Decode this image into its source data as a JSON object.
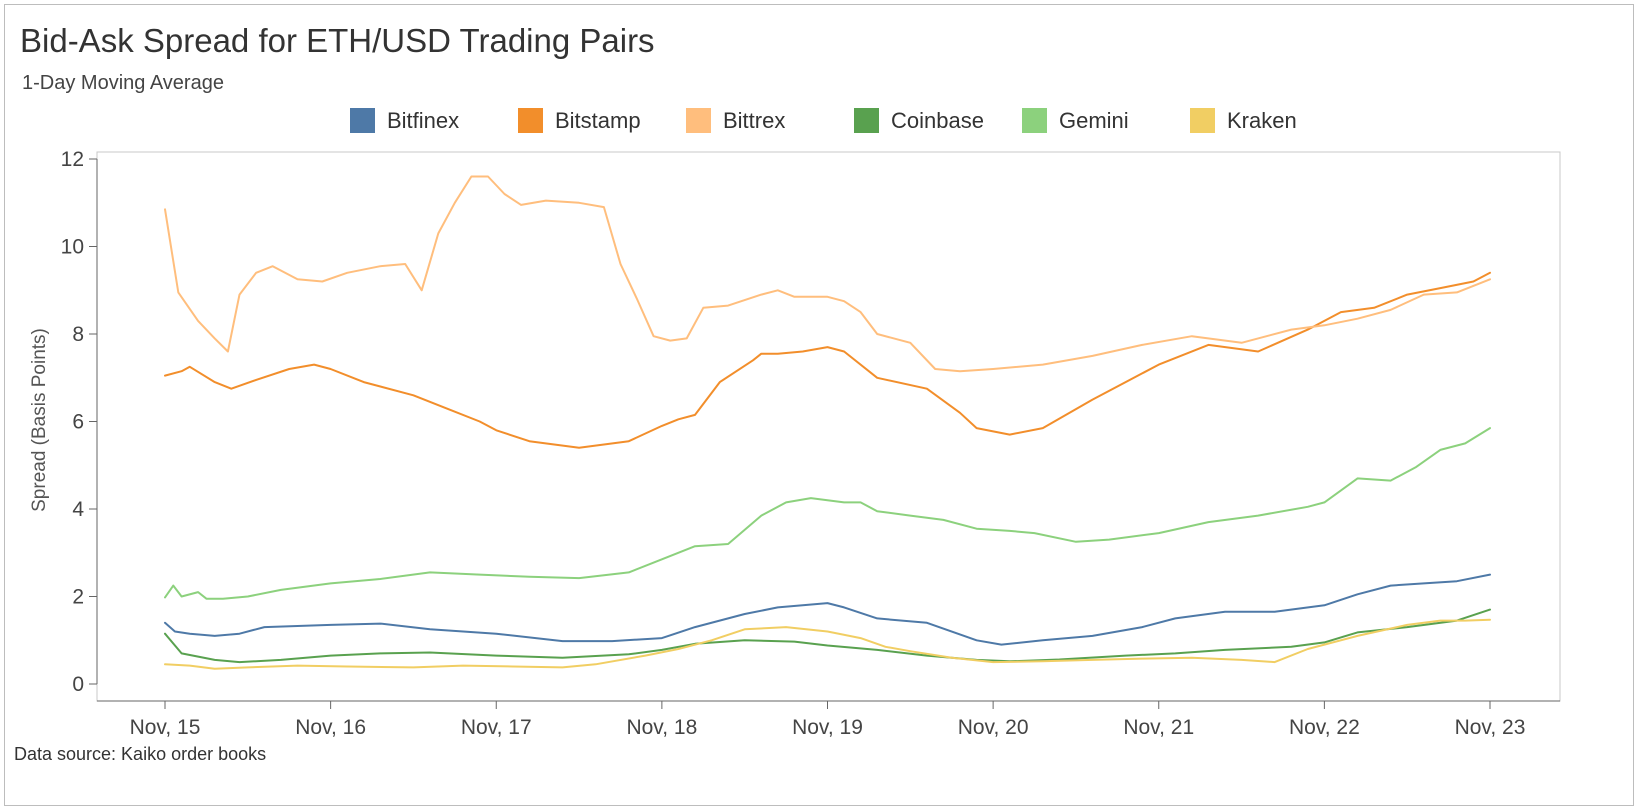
{
  "chart_data": {
    "type": "line",
    "title": "Bid-Ask Spread for ETH/USD Trading Pairs",
    "subtitle": "1-Day Moving Average",
    "ylabel": "Spread (Basis Points)",
    "xlabel": "",
    "x_ticks": [
      "Nov, 15",
      "Nov, 16",
      "Nov, 17",
      "Nov, 18",
      "Nov, 19",
      "Nov, 20",
      "Nov, 21",
      "Nov, 22",
      "Nov, 23"
    ],
    "y_ticks": [
      0,
      2,
      4,
      6,
      8,
      10,
      12
    ],
    "xlim": [
      0,
      8
    ],
    "ylim": [
      0,
      12
    ],
    "legend_position": "top",
    "source": "Data source: Kaiko order books",
    "series": [
      {
        "name": "Bitfinex",
        "color": "#4e79a7",
        "x": [
          0,
          0.06,
          0.15,
          0.3,
          0.45,
          0.6,
          1.0,
          1.3,
          1.6,
          2.0,
          2.4,
          2.7,
          3.0,
          3.2,
          3.5,
          3.7,
          3.85,
          4.0,
          4.1,
          4.3,
          4.6,
          4.9,
          5.05,
          5.3,
          5.6,
          5.9,
          6.1,
          6.4,
          6.7,
          7.0,
          7.2,
          7.4,
          7.6,
          7.8,
          8.0
        ],
        "y": [
          1.4,
          1.2,
          1.15,
          1.1,
          1.15,
          1.3,
          1.35,
          1.38,
          1.25,
          1.15,
          0.98,
          0.98,
          1.05,
          1.3,
          1.6,
          1.75,
          1.8,
          1.85,
          1.75,
          1.5,
          1.4,
          1.0,
          0.9,
          1.0,
          1.1,
          1.3,
          1.5,
          1.65,
          1.65,
          1.8,
          2.05,
          2.25,
          2.3,
          2.35,
          2.5
        ]
      },
      {
        "name": "Bitstamp",
        "color": "#f28e2b",
        "x": [
          0,
          0.1,
          0.15,
          0.3,
          0.4,
          0.55,
          0.75,
          0.9,
          1.0,
          1.2,
          1.5,
          1.7,
          1.9,
          2.0,
          2.2,
          2.5,
          2.8,
          3.0,
          3.1,
          3.2,
          3.35,
          3.55,
          3.6,
          3.7,
          3.85,
          4.0,
          4.1,
          4.3,
          4.6,
          4.8,
          4.9,
          5.1,
          5.3,
          5.6,
          6.0,
          6.3,
          6.6,
          6.9,
          7.1,
          7.3,
          7.5,
          7.7,
          7.9,
          8.0
        ],
        "y": [
          7.05,
          7.15,
          7.25,
          6.9,
          6.75,
          6.95,
          7.2,
          7.3,
          7.2,
          6.9,
          6.6,
          6.3,
          6.0,
          5.8,
          5.55,
          5.4,
          5.55,
          5.9,
          6.05,
          6.15,
          6.9,
          7.4,
          7.55,
          7.55,
          7.6,
          7.7,
          7.6,
          7.0,
          6.75,
          6.2,
          5.85,
          5.7,
          5.85,
          6.5,
          7.3,
          7.75,
          7.6,
          8.1,
          8.5,
          8.6,
          8.9,
          9.05,
          9.2,
          9.4
        ]
      },
      {
        "name": "Bittrex",
        "color": "#ffbe7d",
        "x": [
          0,
          0.08,
          0.2,
          0.3,
          0.38,
          0.45,
          0.55,
          0.65,
          0.8,
          0.95,
          1.1,
          1.3,
          1.45,
          1.55,
          1.65,
          1.75,
          1.85,
          1.95,
          2.05,
          2.15,
          2.3,
          2.5,
          2.65,
          2.75,
          2.85,
          2.95,
          3.05,
          3.15,
          3.25,
          3.4,
          3.6,
          3.7,
          3.8,
          4.0,
          4.1,
          4.2,
          4.3,
          4.5,
          4.65,
          4.8,
          5.0,
          5.3,
          5.6,
          5.9,
          6.2,
          6.5,
          6.8,
          7.0,
          7.2,
          7.4,
          7.6,
          7.8,
          8.0
        ],
        "y": [
          10.85,
          8.95,
          8.3,
          7.9,
          7.6,
          8.9,
          9.4,
          9.55,
          9.25,
          9.2,
          9.4,
          9.55,
          9.6,
          9.0,
          10.3,
          11.0,
          11.6,
          11.6,
          11.2,
          10.95,
          11.05,
          11.0,
          10.9,
          9.6,
          8.8,
          7.95,
          7.85,
          7.9,
          8.6,
          8.65,
          8.9,
          9.0,
          8.85,
          8.85,
          8.75,
          8.5,
          8.0,
          7.8,
          7.2,
          7.15,
          7.2,
          7.3,
          7.5,
          7.75,
          7.95,
          7.8,
          8.1,
          8.2,
          8.35,
          8.55,
          8.9,
          8.95,
          9.25
        ]
      },
      {
        "name": "Coinbase",
        "color": "#59a14f",
        "x": [
          0,
          0.1,
          0.3,
          0.45,
          0.7,
          1.0,
          1.3,
          1.6,
          2.0,
          2.4,
          2.8,
          3.0,
          3.2,
          3.5,
          3.8,
          4.0,
          4.3,
          4.6,
          4.9,
          5.1,
          5.4,
          5.8,
          6.1,
          6.4,
          6.8,
          7.0,
          7.2,
          7.5,
          7.8,
          8.0
        ],
        "y": [
          1.15,
          0.7,
          0.55,
          0.5,
          0.55,
          0.65,
          0.7,
          0.72,
          0.65,
          0.6,
          0.68,
          0.78,
          0.92,
          1.0,
          0.97,
          0.88,
          0.78,
          0.65,
          0.55,
          0.52,
          0.56,
          0.65,
          0.7,
          0.78,
          0.85,
          0.95,
          1.18,
          1.3,
          1.45,
          1.7
        ]
      },
      {
        "name": "Gemini",
        "color": "#8cd17d",
        "x": [
          0,
          0.05,
          0.1,
          0.2,
          0.25,
          0.35,
          0.5,
          0.7,
          1.0,
          1.3,
          1.6,
          1.9,
          2.2,
          2.5,
          2.8,
          3.0,
          3.2,
          3.4,
          3.6,
          3.75,
          3.9,
          4.1,
          4.2,
          4.3,
          4.5,
          4.7,
          4.9,
          5.1,
          5.25,
          5.5,
          5.7,
          6.0,
          6.3,
          6.6,
          6.9,
          7.0,
          7.2,
          7.4,
          7.55,
          7.7,
          7.85,
          8.0
        ],
        "y": [
          1.98,
          2.25,
          2.0,
          2.1,
          1.95,
          1.95,
          2.0,
          2.15,
          2.3,
          2.4,
          2.55,
          2.5,
          2.45,
          2.42,
          2.55,
          2.85,
          3.15,
          3.2,
          3.85,
          4.15,
          4.25,
          4.15,
          4.15,
          3.95,
          3.85,
          3.75,
          3.55,
          3.5,
          3.45,
          3.25,
          3.3,
          3.45,
          3.7,
          3.85,
          4.05,
          4.15,
          4.7,
          4.65,
          4.95,
          5.35,
          5.5,
          5.85
        ]
      },
      {
        "name": "Kraken",
        "color": "#f1ce63",
        "x": [
          0,
          0.15,
          0.3,
          0.5,
          0.8,
          1.1,
          1.5,
          1.8,
          2.1,
          2.4,
          2.6,
          2.9,
          3.1,
          3.3,
          3.5,
          3.75,
          4.0,
          4.2,
          4.35,
          4.5,
          4.75,
          5.0,
          5.3,
          5.6,
          5.9,
          6.2,
          6.5,
          6.7,
          6.9,
          7.0,
          7.2,
          7.5,
          7.7,
          7.85,
          8.0
        ],
        "y": [
          0.45,
          0.42,
          0.35,
          0.38,
          0.42,
          0.4,
          0.38,
          0.42,
          0.4,
          0.38,
          0.45,
          0.65,
          0.8,
          1.0,
          1.25,
          1.3,
          1.2,
          1.05,
          0.85,
          0.75,
          0.6,
          0.5,
          0.52,
          0.55,
          0.58,
          0.6,
          0.55,
          0.5,
          0.8,
          0.9,
          1.1,
          1.35,
          1.45,
          1.45,
          1.47
        ]
      }
    ]
  }
}
